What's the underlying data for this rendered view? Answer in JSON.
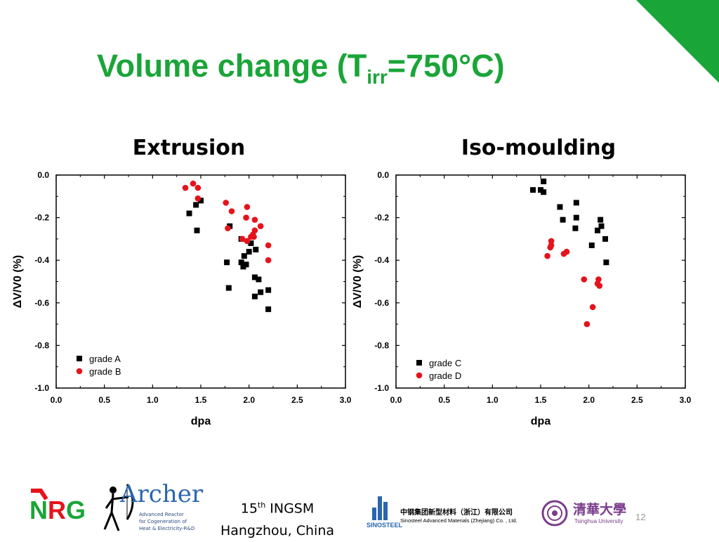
{
  "slide": {
    "title_main": "Volume change (T",
    "title_sub": "irr",
    "title_rest": "=750°C)",
    "page_number": "12",
    "footer_ordinal": "15",
    "footer_ordinal_suffix": "th",
    "footer_conference": " INGSM",
    "footer_location": "Hangzhou, China",
    "accent_color": "#1aa538"
  },
  "logos": {
    "nrg": "NRG",
    "archer_name": "Archer",
    "archer_line1": "Advanced Reactor",
    "archer_line2": "for Cogeneration of",
    "archer_line3": "Heat & Electricity-R&D",
    "sinosteel_brand": "SINOSTEEL",
    "sinosteel_cn": "中钢集团新型材料（浙江）有限公司",
    "sinosteel_en": "Sinosteel Advanced Materials (Zhejiang) Co. , Ltd.",
    "tsinghua_cn": "清華大學",
    "tsinghua_en": "Tsinghua University"
  },
  "chart_data": [
    {
      "type": "scatter",
      "title": "Extrusion",
      "xlabel": "dpa",
      "ylabel": "ΔV/V0 (%)",
      "xlim": [
        0.0,
        3.0
      ],
      "ylim": [
        -1.0,
        0.0
      ],
      "xticks": [
        "0.0",
        "0.5",
        "1.0",
        "1.5",
        "2.0",
        "2.5",
        "3.0"
      ],
      "yticks": [
        "0.0",
        "-0.2",
        "-0.4",
        "-0.6",
        "-0.8",
        "-1.0"
      ],
      "legend_position": "bottom-left",
      "series": [
        {
          "name": "grade A",
          "marker": "square",
          "color": "#000000",
          "points": [
            [
              1.38,
              -0.18
            ],
            [
              1.45,
              -0.14
            ],
            [
              1.5,
              -0.12
            ],
            [
              1.46,
              -0.26
            ],
            [
              1.8,
              -0.24
            ],
            [
              1.77,
              -0.41
            ],
            [
              1.79,
              -0.53
            ],
            [
              1.92,
              -0.3
            ],
            [
              1.95,
              -0.38
            ],
            [
              1.92,
              -0.41
            ],
            [
              1.94,
              -0.43
            ],
            [
              1.97,
              -0.42
            ],
            [
              2.0,
              -0.36
            ],
            [
              2.02,
              -0.32
            ],
            [
              2.07,
              -0.35
            ],
            [
              2.06,
              -0.48
            ],
            [
              2.1,
              -0.49
            ],
            [
              2.06,
              -0.57
            ],
            [
              2.12,
              -0.55
            ],
            [
              2.2,
              -0.54
            ],
            [
              2.2,
              -0.63
            ]
          ]
        },
        {
          "name": "grade B",
          "marker": "circle",
          "color": "#e5131b",
          "points": [
            [
              1.34,
              -0.06
            ],
            [
              1.42,
              -0.04
            ],
            [
              1.47,
              -0.06
            ],
            [
              1.47,
              -0.11
            ],
            [
              1.76,
              -0.13
            ],
            [
              1.82,
              -0.17
            ],
            [
              1.78,
              -0.25
            ],
            [
              1.98,
              -0.15
            ],
            [
              1.97,
              -0.2
            ],
            [
              2.06,
              -0.21
            ],
            [
              2.12,
              -0.24
            ],
            [
              2.06,
              -0.26
            ],
            [
              1.93,
              -0.3
            ],
            [
              1.98,
              -0.31
            ],
            [
              2.02,
              -0.29
            ],
            [
              2.05,
              -0.29
            ],
            [
              2.04,
              -0.28
            ],
            [
              2.2,
              -0.33
            ],
            [
              2.2,
              -0.4
            ]
          ]
        }
      ]
    },
    {
      "type": "scatter",
      "title": "Iso-moulding",
      "xlabel": "dpa",
      "ylabel": "ΔV/V0 (%)",
      "xlim": [
        0.0,
        3.0
      ],
      "ylim": [
        -1.0,
        0.0
      ],
      "xticks": [
        "0.0",
        "0.5",
        "1.0",
        "1.5",
        "2.0",
        "2.5",
        "3.0"
      ],
      "yticks": [
        "0.0",
        "-0.2",
        "-0.4",
        "-0.6",
        "-0.8",
        "-1.0"
      ],
      "legend_position": "bottom-left",
      "series": [
        {
          "name": "grade C",
          "marker": "square",
          "color": "#000000",
          "points": [
            [
              1.42,
              -0.07
            ],
            [
              1.5,
              -0.07
            ],
            [
              1.53,
              -0.08
            ],
            [
              1.53,
              -0.03
            ],
            [
              1.7,
              -0.15
            ],
            [
              1.73,
              -0.21
            ],
            [
              1.87,
              -0.13
            ],
            [
              1.87,
              -0.2
            ],
            [
              1.86,
              -0.25
            ],
            [
              2.03,
              -0.33
            ],
            [
              2.09,
              -0.26
            ],
            [
              2.12,
              -0.21
            ],
            [
              2.13,
              -0.24
            ],
            [
              2.17,
              -0.3
            ],
            [
              2.18,
              -0.41
            ]
          ]
        },
        {
          "name": "grade D",
          "marker": "circle",
          "color": "#e5131b",
          "points": [
            [
              1.57,
              -0.38
            ],
            [
              1.6,
              -0.34
            ],
            [
              1.61,
              -0.31
            ],
            [
              1.61,
              -0.33
            ],
            [
              1.74,
              -0.37
            ],
            [
              1.77,
              -0.36
            ],
            [
              1.95,
              -0.49
            ],
            [
              1.98,
              -0.7
            ],
            [
              2.04,
              -0.62
            ],
            [
              2.09,
              -0.51
            ],
            [
              2.1,
              -0.49
            ],
            [
              2.11,
              -0.52
            ]
          ]
        }
      ]
    }
  ]
}
